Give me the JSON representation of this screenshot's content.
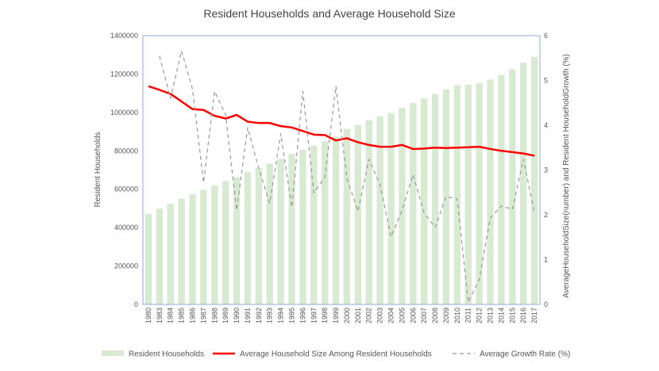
{
  "chart_data": {
    "type": "bar",
    "title": "Resident Households and Average Household Size",
    "ylabel_left": "Resident Households",
    "ylabel_right": "AverageHouseholdSize(number) and Resident HouseholdGrowth (%)",
    "ylim_left": [
      0,
      1400000
    ],
    "ylim_right": [
      0,
      6
    ],
    "yticks_left": [
      "0",
      "200000",
      "400000",
      "600000",
      "800000",
      "1000000",
      "1200000",
      "1400000"
    ],
    "yticks_right": [
      "0",
      "1",
      "2",
      "3",
      "4",
      "5",
      "6"
    ],
    "grid": false,
    "legend_position": "bottom",
    "categories": [
      "1980",
      "1983",
      "1984",
      "1985",
      "1986",
      "1987",
      "1988",
      "1989",
      "1990",
      "1991",
      "1992",
      "1993",
      "1994",
      "1995",
      "1996",
      "1997",
      "1998",
      "1999",
      "2000",
      "2001",
      "2002",
      "2003",
      "2004",
      "2005",
      "2006",
      "2007",
      "2008",
      "2009",
      "2010",
      "2011",
      "2012",
      "2013",
      "2014",
      "2015",
      "2016",
      "2017"
    ],
    "series": [
      {
        "name": "Resident Households",
        "type": "bar",
        "axis": "left",
        "color": "#d9ead3",
        "values": [
          472000,
          499000,
          525000,
          550000,
          574000,
          597000,
          620000,
          642000,
          662000,
          688000,
          711000,
          734000,
          757000,
          783000,
          806000,
          827000,
          851000,
          872000,
          915000,
          935000,
          960000,
          980000,
          997000,
          1024000,
          1050000,
          1073000,
          1096000,
          1120000,
          1143000,
          1145000,
          1153000,
          1172000,
          1196000,
          1225000,
          1260000,
          1290000
        ]
      },
      {
        "name": "Average Household Size Among Resident Households",
        "type": "line",
        "axis": "right",
        "color": "#ff0000",
        "values": [
          4.87,
          4.79,
          4.7,
          4.53,
          4.36,
          4.34,
          4.21,
          4.15,
          4.23,
          4.08,
          4.05,
          4.05,
          3.98,
          3.95,
          3.87,
          3.79,
          3.78,
          3.66,
          3.71,
          3.62,
          3.56,
          3.52,
          3.52,
          3.56,
          3.47,
          3.48,
          3.5,
          3.49,
          3.5,
          3.51,
          3.52,
          3.47,
          3.43,
          3.4,
          3.37,
          3.32
        ]
      },
      {
        "name": "Average Growth Rate (%)",
        "type": "line",
        "axis": "right",
        "color": "#999999",
        "dashed": true,
        "values": [
          null,
          5.55,
          4.6,
          5.66,
          4.8,
          2.72,
          4.76,
          4.23,
          2.1,
          3.95,
          3.04,
          2.26,
          3.81,
          2.17,
          4.76,
          2.49,
          2.84,
          4.87,
          2.81,
          2.08,
          3.24,
          2.68,
          1.51,
          2.1,
          2.9,
          2.04,
          1.72,
          2.41,
          2.35,
          0.05,
          0.55,
          1.93,
          2.2,
          2.12,
          3.24,
          2.05
        ]
      }
    ]
  }
}
